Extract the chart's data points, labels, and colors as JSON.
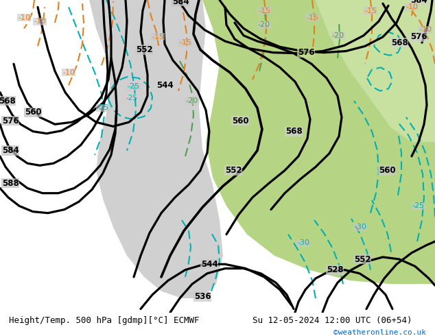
{
  "title_left": "Height/Temp. 500 hPa [gdmp][°C] ECMWF",
  "title_right": "Su 12-05-2024 12:00 UTC (06+54)",
  "credit": "©weatheronline.co.uk",
  "bg_color": "#c0bfbf",
  "fig_width": 6.34,
  "fig_height": 4.9,
  "dpi": 100
}
